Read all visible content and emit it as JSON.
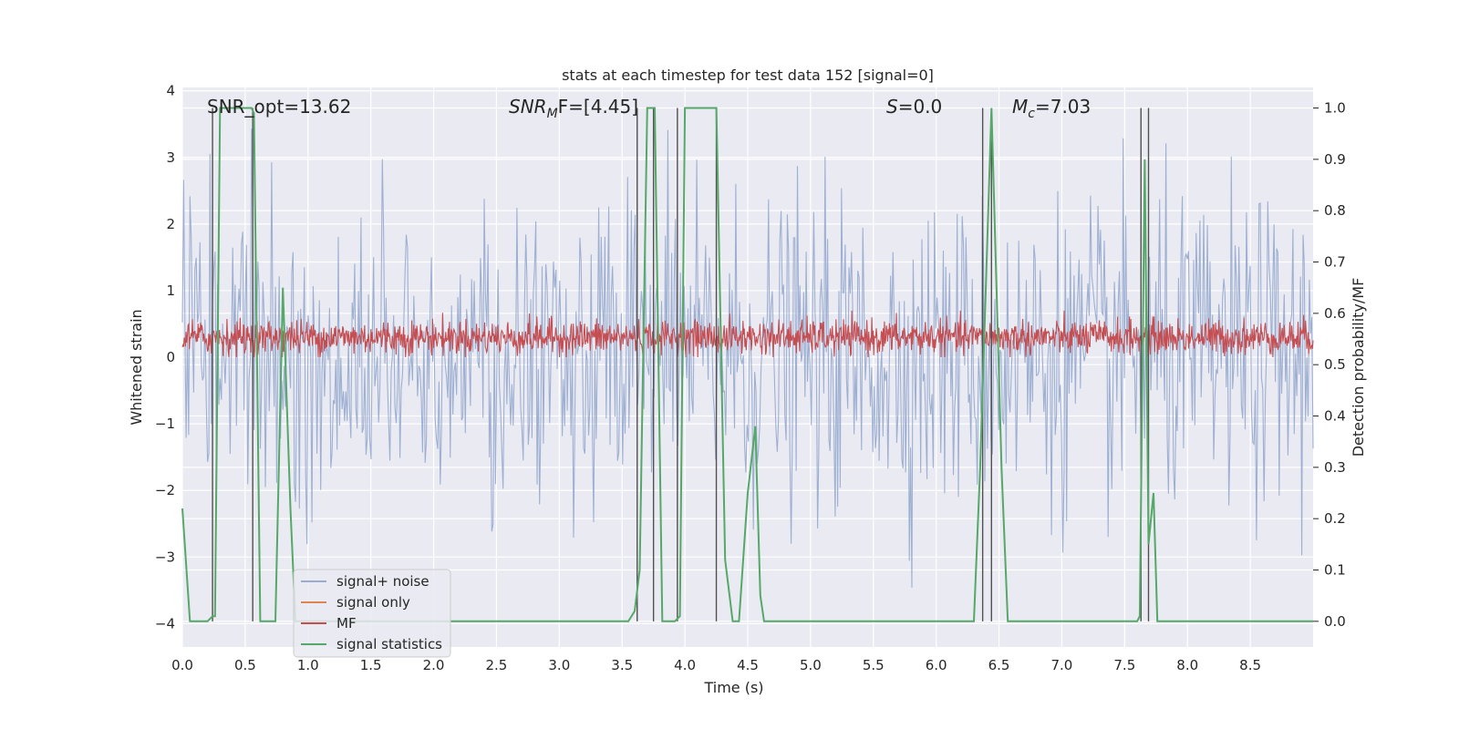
{
  "chart_data": {
    "type": "line",
    "title": "stats at each timestep for test data 152 [signal=0]",
    "xlabel": "Time (s)",
    "ylabel": "Whitened strain",
    "y2label": "Detection probability/MF",
    "xlim": [
      0.0,
      9.0
    ],
    "ylim": [
      -4.35,
      4.05
    ],
    "y2lim": [
      -0.05,
      1.04
    ],
    "xticks": [
      "0.0",
      "0.5",
      "1.0",
      "1.5",
      "2.0",
      "2.5",
      "3.0",
      "3.5",
      "4.0",
      "4.5",
      "5.0",
      "5.5",
      "6.0",
      "6.5",
      "7.0",
      "7.5",
      "8.0",
      "8.5"
    ],
    "yticks": [
      "−4",
      "−3",
      "−2",
      "−1",
      "0",
      "1",
      "2",
      "3",
      "4"
    ],
    "y2ticks": [
      "0.0",
      "0.1",
      "0.2",
      "0.3",
      "0.4",
      "0.5",
      "0.6",
      "0.7",
      "0.8",
      "0.9",
      "1.0"
    ],
    "annotations": {
      "snr_opt": "SNR_opt=13.62",
      "snr_mf_name": "SNR",
      "snr_mf_sub": "M",
      "snr_mf_rest": "F=[4.45]",
      "s_name": "S",
      "s_rest": "=0.0",
      "mc_name": "M",
      "mc_sub": "c",
      "mc_rest": "=7.03"
    },
    "legend": {
      "position": "lower-left",
      "entries": [
        "signal+ noise",
        "signal only",
        "MF",
        "signal statistics"
      ]
    },
    "colors": {
      "noise": "#9aadd0",
      "signal_only": "#dd8452",
      "mf": "#c44e52",
      "stats": "#55a868",
      "vlines": "#505050",
      "background": "#eaeaf2",
      "grid": "#ffffff"
    },
    "series": [
      {
        "name": "signal statistics",
        "axis": "right",
        "x": [
          0.0,
          0.06,
          0.2,
          0.24,
          0.26,
          0.3,
          0.55,
          0.57,
          0.62,
          0.74,
          0.8,
          0.86,
          0.9,
          3.55,
          3.6,
          3.64,
          3.7,
          3.76,
          3.82,
          3.92,
          3.96,
          4.0,
          4.25,
          4.32,
          4.38,
          4.43,
          4.5,
          4.56,
          4.6,
          4.63,
          6.3,
          6.35,
          6.44,
          6.52,
          6.57,
          7.6,
          7.62,
          7.66,
          7.69,
          7.73,
          7.76,
          9.0
        ],
        "values": [
          0.22,
          0.0,
          0.0,
          0.01,
          0.01,
          1.0,
          1.0,
          0.99,
          0.0,
          0.0,
          0.65,
          0.22,
          0.0,
          0.0,
          0.02,
          0.1,
          1.0,
          1.0,
          0.0,
          0.0,
          0.01,
          1.0,
          1.0,
          0.12,
          0.0,
          0.0,
          0.25,
          0.38,
          0.05,
          0.0,
          0.0,
          0.3,
          1.0,
          0.3,
          0.0,
          0.0,
          0.01,
          0.9,
          0.15,
          0.25,
          0.0,
          0.0
        ]
      },
      {
        "name": "vertical markers",
        "axis": "right",
        "segments": [
          {
            "x": 0.24,
            "bottom": 0.0,
            "top": 1.0
          },
          {
            "x": 0.56,
            "bottom": 0.0,
            "top": 1.0
          },
          {
            "x": 3.62,
            "bottom": 0.0,
            "top": 1.0
          },
          {
            "x": 3.75,
            "bottom": 0.0,
            "top": 1.0
          },
          {
            "x": 3.94,
            "bottom": 0.0,
            "top": 1.0
          },
          {
            "x": 4.25,
            "bottom": 0.0,
            "top": 1.0
          },
          {
            "x": 6.37,
            "bottom": 0.0,
            "top": 1.0
          },
          {
            "x": 6.44,
            "bottom": 0.0,
            "top": 1.0
          },
          {
            "x": 7.63,
            "bottom": 0.0,
            "top": 1.0
          },
          {
            "x": 7.69,
            "bottom": 0.0,
            "top": 1.0
          }
        ]
      },
      {
        "name": "signal+ noise",
        "axis": "left",
        "description_stats": {
          "samples": 900,
          "typical_min": -3.5,
          "typical_max": 3.6,
          "std": 1.15
        }
      },
      {
        "name": "MF",
        "axis": "left",
        "description_stats": {
          "samples": 1800,
          "min": 0.0,
          "max": 0.7,
          "mean": 0.3
        }
      }
    ]
  }
}
